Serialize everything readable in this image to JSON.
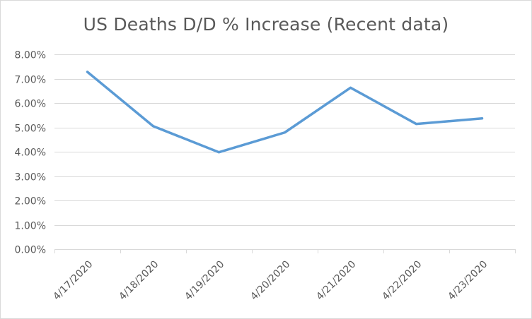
{
  "chart_data": {
    "type": "line",
    "title": "US Deaths D/D % Increase (Recent data)",
    "xlabel": "",
    "ylabel": "",
    "categories": [
      "4/17/2020",
      "4/18/2020",
      "4/19/2020",
      "4/20/2020",
      "4/21/2020",
      "4/22/2020",
      "4/23/2020"
    ],
    "series": [
      {
        "name": "US Deaths D/D % Increase",
        "values": [
          7.28,
          5.05,
          3.98,
          4.79,
          6.63,
          5.14,
          5.37
        ],
        "color": "#5b9bd5"
      }
    ],
    "ylim": [
      0,
      8
    ],
    "yticks": [
      "0.00%",
      "1.00%",
      "2.00%",
      "3.00%",
      "4.00%",
      "5.00%",
      "6.00%",
      "7.00%",
      "8.00%"
    ],
    "grid": true,
    "legend": "none"
  }
}
